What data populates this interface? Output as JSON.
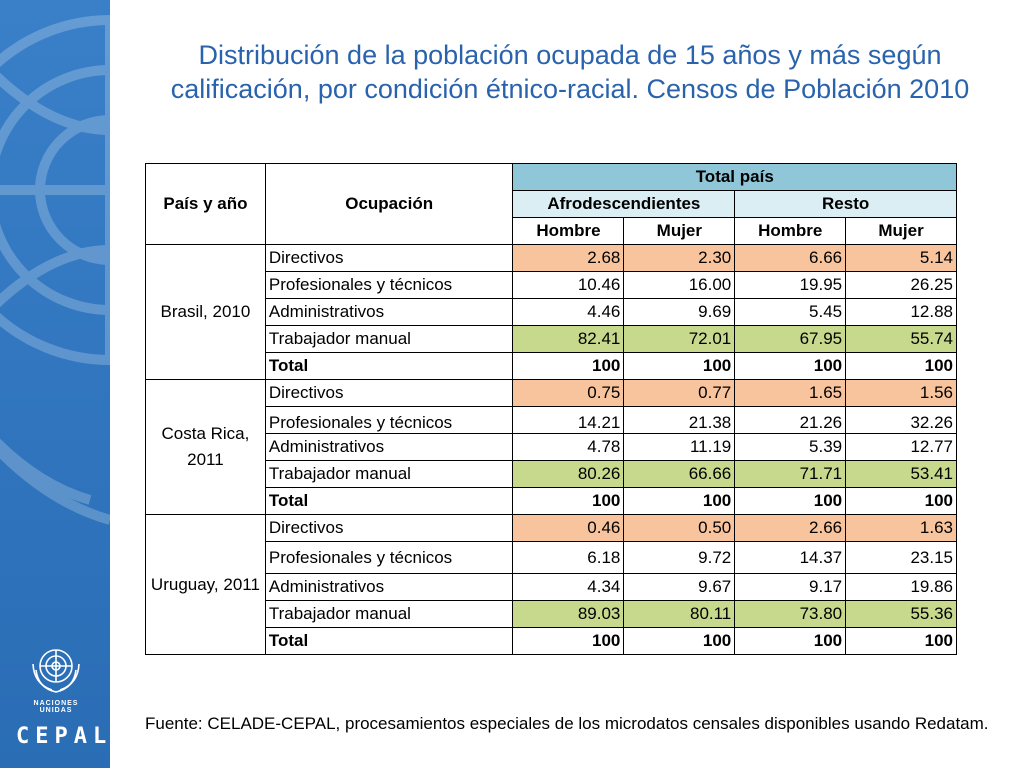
{
  "title": "Distribución de la población ocupada de 15 años y más según calificación, por condición étnico-racial. Censos de Población 2010",
  "logo": {
    "un_text": "NACIONES UNIDAS",
    "cepal_text": "CEPAL"
  },
  "table": {
    "col_country": "País y año",
    "col_occupation": "Ocupación",
    "col_total": "Total país",
    "col_afro": "Afrodescendientes",
    "col_resto": "Resto",
    "col_hombre": "Hombre",
    "col_mujer": "Mujer",
    "groups": [
      {
        "country": "Brasil, 2010",
        "rows": [
          {
            "label": "Directivos",
            "values": [
              "2.68",
              "2.30",
              "6.66",
              "5.14"
            ]
          },
          {
            "label": "Profesionales y técnicos",
            "values": [
              "10.46",
              "16.00",
              "19.95",
              "26.25"
            ]
          },
          {
            "label": "Administrativos",
            "values": [
              "4.46",
              "9.69",
              "5.45",
              "12.88"
            ]
          },
          {
            "label": "Trabajador manual",
            "values": [
              "82.41",
              "72.01",
              "67.95",
              "55.74"
            ]
          },
          {
            "label": "Total",
            "values": [
              "100",
              "100",
              "100",
              "100"
            ]
          }
        ]
      },
      {
        "country": "Costa Rica, 2011",
        "rows": [
          {
            "label": "Directivos",
            "values": [
              "0.75",
              "0.77",
              "1.65",
              "1.56"
            ]
          },
          {
            "label": "Profesionales y técnicos",
            "values": [
              "14.21",
              "21.38",
              "21.26",
              "32.26"
            ]
          },
          {
            "label": "Administrativos",
            "values": [
              "4.78",
              "11.19",
              "5.39",
              "12.77"
            ]
          },
          {
            "label": "Trabajador manual",
            "values": [
              "80.26",
              "66.66",
              "71.71",
              "53.41"
            ]
          },
          {
            "label": "Total",
            "values": [
              "100",
              "100",
              "100",
              "100"
            ]
          }
        ]
      },
      {
        "country": "Uruguay, 2011",
        "rows": [
          {
            "label": "Directivos",
            "values": [
              "0.46",
              "0.50",
              "2.66",
              "1.63"
            ]
          },
          {
            "label": "Profesionales y técnicos",
            "values": [
              "6.18",
              "9.72",
              "14.37",
              "23.15"
            ]
          },
          {
            "label": "Administrativos",
            "values": [
              "4.34",
              "9.67",
              "9.17",
              "19.86"
            ]
          },
          {
            "label": "Trabajador manual",
            "values": [
              "89.03",
              "80.11",
              "73.80",
              "55.36"
            ]
          },
          {
            "label": "Total",
            "values": [
              "100",
              "100",
              "100",
              "100"
            ]
          }
        ]
      }
    ]
  },
  "source": "Fuente: CELADE-CEPAL, procesamientos especiales de los microdatos censales disponibles usando Redatam.",
  "colors": {
    "title": "#2a63ad",
    "sidebar": "#2f74bd",
    "header_total": "#8fc6d8",
    "header_sub": "#dbeef4",
    "highlight_directivos": "#f8c49e",
    "highlight_manual": "#c6d98d"
  }
}
